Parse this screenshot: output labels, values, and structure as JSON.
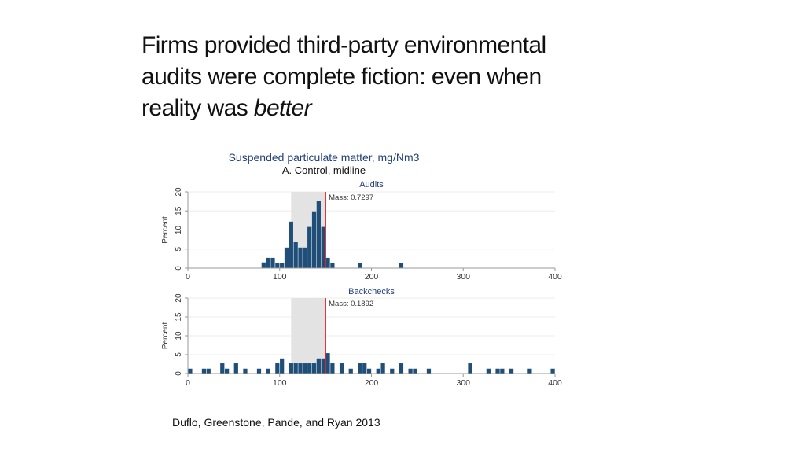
{
  "slide": {
    "title_line1": "Firms provided third-party environmental",
    "title_line2": "audits were complete fiction:  even when",
    "title_line3_prefix": "reality was ",
    "title_line3_emphasis": "better",
    "citation": "Duflo, Greenstone, Pande, and Ryan 2013"
  },
  "chart_data": {
    "type": "bar",
    "title": "Suspended particulate matter, mg/Nm3",
    "subtitle": "A. Control, midline",
    "xlim": [
      0,
      400
    ],
    "xticks": [
      0,
      100,
      200,
      300,
      400
    ],
    "ylim": [
      0,
      20
    ],
    "yticks": [
      0,
      5,
      10,
      15,
      20
    ],
    "ylabel": "Percent",
    "bin_width": 5,
    "colors": {
      "bars": "#1f4e79",
      "band": "#e3e3e3",
      "threshold_line": "#e0262c",
      "title": "#23417a",
      "grid": "#eeeeee",
      "axis": "#999999"
    },
    "shaded_band": [
      112.5,
      150
    ],
    "threshold": 150,
    "panels": [
      {
        "name": "Audits",
        "mass_label": "Mass: 0.7297",
        "bins": [
          {
            "x": 80,
            "y": 1.5
          },
          {
            "x": 85,
            "y": 2.7
          },
          {
            "x": 90,
            "y": 2.7
          },
          {
            "x": 95,
            "y": 1.3
          },
          {
            "x": 100,
            "y": 1.3
          },
          {
            "x": 105,
            "y": 5.4
          },
          {
            "x": 110,
            "y": 12.2
          },
          {
            "x": 115,
            "y": 6.8
          },
          {
            "x": 120,
            "y": 5.4
          },
          {
            "x": 125,
            "y": 5.4
          },
          {
            "x": 130,
            "y": 10.8
          },
          {
            "x": 135,
            "y": 14.9
          },
          {
            "x": 140,
            "y": 17.6
          },
          {
            "x": 145,
            "y": 10.8
          },
          {
            "x": 150,
            "y": 2.7
          },
          {
            "x": 155,
            "y": 1.3
          },
          {
            "x": 185,
            "y": 1.3
          },
          {
            "x": 230,
            "y": 1.3
          }
        ]
      },
      {
        "name": "Backchecks",
        "mass_label": "Mass: 0.1892",
        "bins": [
          {
            "x": 0,
            "y": 1.3
          },
          {
            "x": 15,
            "y": 1.3
          },
          {
            "x": 20,
            "y": 1.3
          },
          {
            "x": 35,
            "y": 2.7
          },
          {
            "x": 40,
            "y": 1.3
          },
          {
            "x": 50,
            "y": 2.7
          },
          {
            "x": 60,
            "y": 1.3
          },
          {
            "x": 75,
            "y": 1.3
          },
          {
            "x": 85,
            "y": 1.3
          },
          {
            "x": 95,
            "y": 2.7
          },
          {
            "x": 100,
            "y": 4.0
          },
          {
            "x": 110,
            "y": 2.7
          },
          {
            "x": 115,
            "y": 2.7
          },
          {
            "x": 120,
            "y": 2.7
          },
          {
            "x": 125,
            "y": 2.7
          },
          {
            "x": 130,
            "y": 2.7
          },
          {
            "x": 135,
            "y": 2.7
          },
          {
            "x": 140,
            "y": 4.0
          },
          {
            "x": 145,
            "y": 4.0
          },
          {
            "x": 150,
            "y": 5.4
          },
          {
            "x": 155,
            "y": 2.7
          },
          {
            "x": 165,
            "y": 2.7
          },
          {
            "x": 175,
            "y": 1.3
          },
          {
            "x": 185,
            "y": 2.7
          },
          {
            "x": 190,
            "y": 2.7
          },
          {
            "x": 195,
            "y": 1.3
          },
          {
            "x": 205,
            "y": 1.3
          },
          {
            "x": 210,
            "y": 2.7
          },
          {
            "x": 220,
            "y": 1.3
          },
          {
            "x": 230,
            "y": 2.7
          },
          {
            "x": 240,
            "y": 1.3
          },
          {
            "x": 245,
            "y": 1.3
          },
          {
            "x": 260,
            "y": 1.3
          },
          {
            "x": 305,
            "y": 2.7
          },
          {
            "x": 325,
            "y": 1.3
          },
          {
            "x": 335,
            "y": 1.3
          },
          {
            "x": 340,
            "y": 1.3
          },
          {
            "x": 350,
            "y": 1.3
          },
          {
            "x": 370,
            "y": 1.3
          },
          {
            "x": 395,
            "y": 1.3
          }
        ]
      }
    ]
  }
}
